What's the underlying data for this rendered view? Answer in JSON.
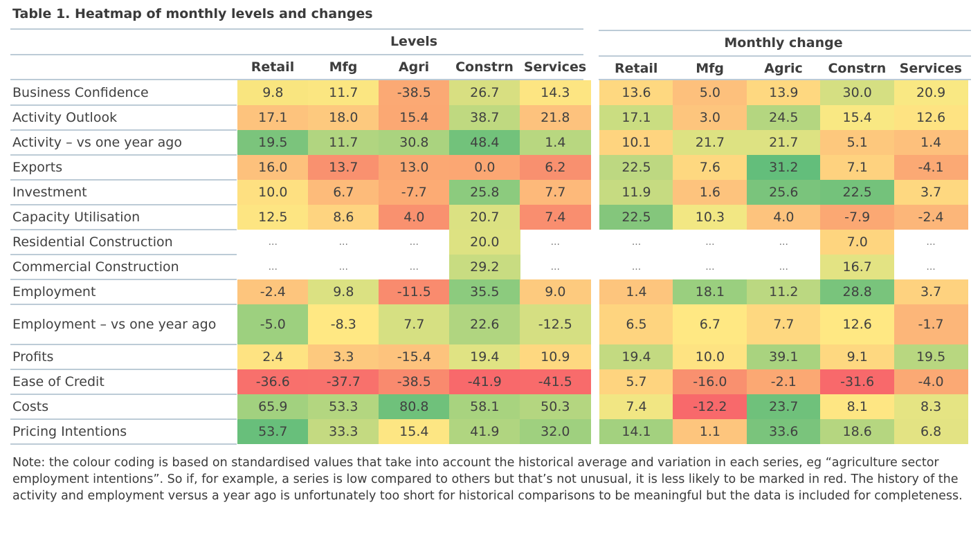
{
  "title": "Table 1. Heatmap of monthly levels and changes",
  "chart_data": {
    "type": "heatmap",
    "title": "Table 1. Heatmap of monthly levels and changes",
    "rows": [
      "Business Confidence",
      "Activity Outlook",
      "Activity – vs one year ago",
      "Exports",
      "Investment",
      "Capacity Utilisation",
      "Residential Construction",
      "Commercial Construction",
      "Employment",
      "Employment – vs one year ago",
      "Profits",
      "Ease of Credit",
      "Costs",
      "Pricing Intentions"
    ],
    "groups": [
      {
        "name": "Levels",
        "columns": [
          "Retail",
          "Mfg",
          "Agri",
          "Constrn",
          "Services"
        ],
        "values": [
          [
            "9.8",
            "11.7",
            "-38.5",
            "26.7",
            "14.3"
          ],
          [
            "17.1",
            "18.0",
            "15.4",
            "38.7",
            "21.8"
          ],
          [
            "19.5",
            "11.7",
            "30.8",
            "48.4",
            "1.4"
          ],
          [
            "16.0",
            "13.7",
            "13.0",
            "0.0",
            "6.2"
          ],
          [
            "10.0",
            "6.7",
            "-7.7",
            "25.8",
            "7.7"
          ],
          [
            "12.5",
            "8.6",
            "4.0",
            "20.7",
            "7.4"
          ],
          [
            "...",
            "...",
            "...",
            "20.0",
            "..."
          ],
          [
            "...",
            "...",
            "...",
            "29.2",
            "..."
          ],
          [
            "-2.4",
            "9.8",
            "-11.5",
            "35.5",
            "9.0"
          ],
          [
            "-5.0",
            "-8.3",
            "7.7",
            "22.6",
            "-12.5"
          ],
          [
            "2.4",
            "3.3",
            "-15.4",
            "19.4",
            "10.9"
          ],
          [
            "-36.6",
            "-37.7",
            "-38.5",
            "-41.9",
            "-41.5"
          ],
          [
            "65.9",
            "53.3",
            "80.8",
            "58.1",
            "50.3"
          ],
          [
            "53.7",
            "33.3",
            "15.4",
            "41.9",
            "32.0"
          ]
        ],
        "colors": [
          [
            "#f9e57f",
            "#fbe681",
            "#fba974",
            "#d8df81",
            "#fde582"
          ],
          [
            "#fdc37d",
            "#fdc97e",
            "#fba873",
            "#bfd980",
            "#fdc27d"
          ],
          [
            "#7bc47c",
            "#b1d580",
            "#aad37f",
            "#72c27b",
            "#b8d780"
          ],
          [
            "#fdc17c",
            "#f9916f",
            "#fba873",
            "#fba773",
            "#f8906f"
          ],
          [
            "#fee081",
            "#fdbb7a",
            "#fcab74",
            "#8ccb7e",
            "#fdb97a"
          ],
          [
            "#fde582",
            "#fed480",
            "#f9916f",
            "#dbe182",
            "#f98e6f"
          ],
          [
            null,
            null,
            null,
            "#dde282",
            null
          ],
          [
            null,
            null,
            null,
            "#c8dc81",
            null
          ],
          [
            "#fdc57d",
            "#dbe182",
            "#f98b6e",
            "#8ccb7e",
            "#fdca7e"
          ],
          [
            "#9dd07f",
            "#ffe883",
            "#d6e082",
            "#b0d580",
            "#d5df82"
          ],
          [
            "#fee382",
            "#fdc97e",
            "#fdc37d",
            "#e0e383",
            "#fed880"
          ],
          [
            "#f8706c",
            "#f8716c",
            "#f98a6e",
            "#f8696b",
            "#f86b6b"
          ],
          [
            "#a2d17f",
            "#b3d680",
            "#6fc17b",
            "#a8d37f",
            "#b4d680"
          ],
          [
            "#68bf7b",
            "#c4da81",
            "#fde683",
            "#b0d580",
            "#9fd07f"
          ]
        ]
      },
      {
        "name": "Monthly change",
        "columns": [
          "Retail",
          "Mfg",
          "Agric",
          "Constrn",
          "Services"
        ],
        "values": [
          [
            "13.6",
            "5.0",
            "13.9",
            "30.0",
            "20.9"
          ],
          [
            "17.1",
            "3.0",
            "24.5",
            "15.4",
            "12.6"
          ],
          [
            "10.1",
            "21.7",
            "21.7",
            "5.1",
            "1.4"
          ],
          [
            "22.5",
            "7.6",
            "31.2",
            "7.1",
            "-4.1"
          ],
          [
            "11.9",
            "1.6",
            "25.6",
            "22.5",
            "3.7"
          ],
          [
            "22.5",
            "10.3",
            "4.0",
            "-7.9",
            "-2.4"
          ],
          [
            "...",
            "...",
            "...",
            "7.0",
            "..."
          ],
          [
            "...",
            "...",
            "...",
            "16.7",
            "..."
          ],
          [
            "1.4",
            "18.1",
            "11.2",
            "28.8",
            "3.7"
          ],
          [
            "6.5",
            "6.7",
            "7.7",
            "12.6",
            "-1.7"
          ],
          [
            "19.4",
            "10.0",
            "39.1",
            "9.1",
            "19.5"
          ],
          [
            "5.7",
            "-16.0",
            "-2.1",
            "-31.6",
            "-4.0"
          ],
          [
            "7.4",
            "-12.2",
            "23.7",
            "8.1",
            "8.3"
          ],
          [
            "14.1",
            "1.1",
            "33.6",
            "18.6",
            "6.8"
          ]
        ],
        "colors": [
          [
            "#fed880",
            "#fdc07c",
            "#fed880",
            "#d5df82",
            "#f9e883"
          ],
          [
            "#cadd81",
            "#fdc57d",
            "#b4d680",
            "#f9e883",
            "#fee382"
          ],
          [
            "#fed47f",
            "#dde282",
            "#dde282",
            "#fdc87d",
            "#fdc07c"
          ],
          [
            "#bdd881",
            "#fed880",
            "#63be7b",
            "#fed27f",
            "#fba974"
          ],
          [
            "#c6db81",
            "#fdc37d",
            "#7ac47c",
            "#74c27b",
            "#fed880"
          ],
          [
            "#84c67c",
            "#f2e783",
            "#fdc37d",
            "#fba873",
            "#fcb679"
          ],
          [
            null,
            null,
            null,
            "#fed57f",
            null
          ],
          [
            null,
            null,
            null,
            "#e3e383",
            null
          ],
          [
            "#fdc57d",
            "#9acf7f",
            "#bbd881",
            "#79c47c",
            "#fed27f"
          ],
          [
            "#fed47f",
            "#ffe883",
            "#fed880",
            "#ffe883",
            "#fcb679"
          ],
          [
            "#c3da81",
            "#fee382",
            "#a9d37f",
            "#fed880",
            "#b8d780"
          ],
          [
            "#fed47f",
            "#f9906f",
            "#fba873",
            "#f8696b",
            "#fba974"
          ],
          [
            "#f1e683",
            "#f8696b",
            "#6fc17b",
            "#fee683",
            "#e5e483"
          ],
          [
            "#a3d17f",
            "#fdc57d",
            "#7ac47c",
            "#b5d680",
            "#e3e383"
          ]
        ]
      }
    ],
    "color_scale": {
      "low": "#f8696b",
      "mid": "#ffeb84",
      "high": "#63be7b"
    }
  },
  "note": "Note: the colour coding is based on standardised values that take into account the historical average and variation in each series, eg “agriculture sector employment intentions”. So if, for example, a series is low compared to others but that’s not unusual, it is less likely to be marked in red. The history of the activity and employment versus a year ago is unfortunately too short for historical comparisons to be meaningful but the data is included for completeness."
}
